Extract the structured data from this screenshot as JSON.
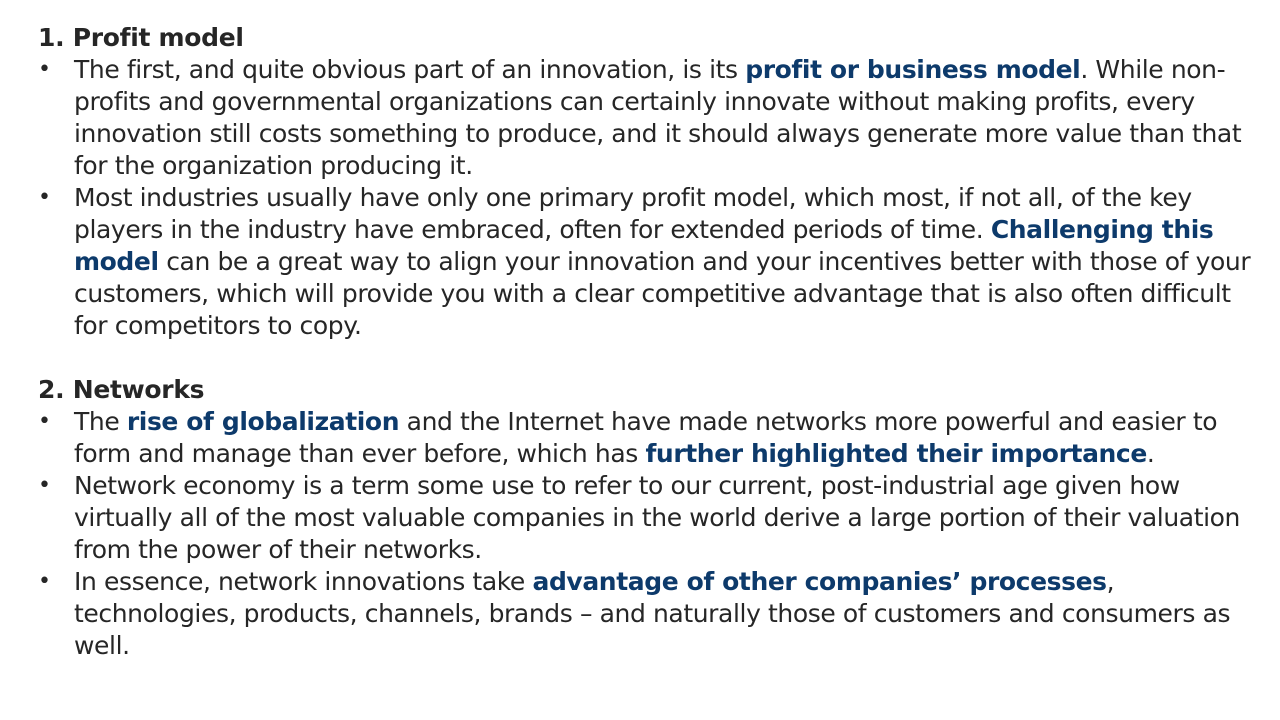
{
  "sections": [
    {
      "title": "1. Profit model",
      "bullets": [
        {
          "parts": [
            {
              "text": "The first, and quite obvious part of an innovation, is its ",
              "highlight": false
            },
            {
              "text": "profit or business model",
              "highlight": true
            },
            {
              "text": ". While non-profits and governmental organizations can certainly innovate without making profits, every innovation still costs something to produce, and it should always generate more value than that for the organization producing it.",
              "highlight": false
            }
          ]
        },
        {
          "parts": [
            {
              "text": "Most industries usually have only one primary profit model, which most, if not all, of the key players in the industry have embraced, often for extended periods of time. ",
              "highlight": false
            },
            {
              "text": "Challenging this model",
              "highlight": true
            },
            {
              "text": " can be a great way to align your innovation and your incentives better with those of your customers, which will provide you with a clear competitive advantage that is also often difficult for competitors to copy.",
              "highlight": false
            }
          ]
        }
      ]
    },
    {
      "title": "2. Networks",
      "bullets": [
        {
          "parts": [
            {
              "text": "The ",
              "highlight": false
            },
            {
              "text": "rise of globalization",
              "highlight": true
            },
            {
              "text": " and the Internet have made networks more powerful and easier to form and manage than ever before, which has ",
              "highlight": false
            },
            {
              "text": "further highlighted their importance",
              "highlight": true
            },
            {
              "text": ".",
              "highlight": false
            }
          ]
        },
        {
          "parts": [
            {
              "text": "Network economy is a term some use to refer to our current, post-industrial age given how virtually all of the most valuable companies in the world derive a large portion of their valuation from the power of their networks.",
              "highlight": false
            }
          ]
        },
        {
          "parts": [
            {
              "text": "In essence, network innovations take ",
              "highlight": false
            },
            {
              "text": "advantage of other companies’ processes",
              "highlight": true
            },
            {
              "text": ", technologies, products, channels, brands – and naturally those of customers and consumers as well.",
              "highlight": false
            }
          ]
        }
      ]
    }
  ]
}
